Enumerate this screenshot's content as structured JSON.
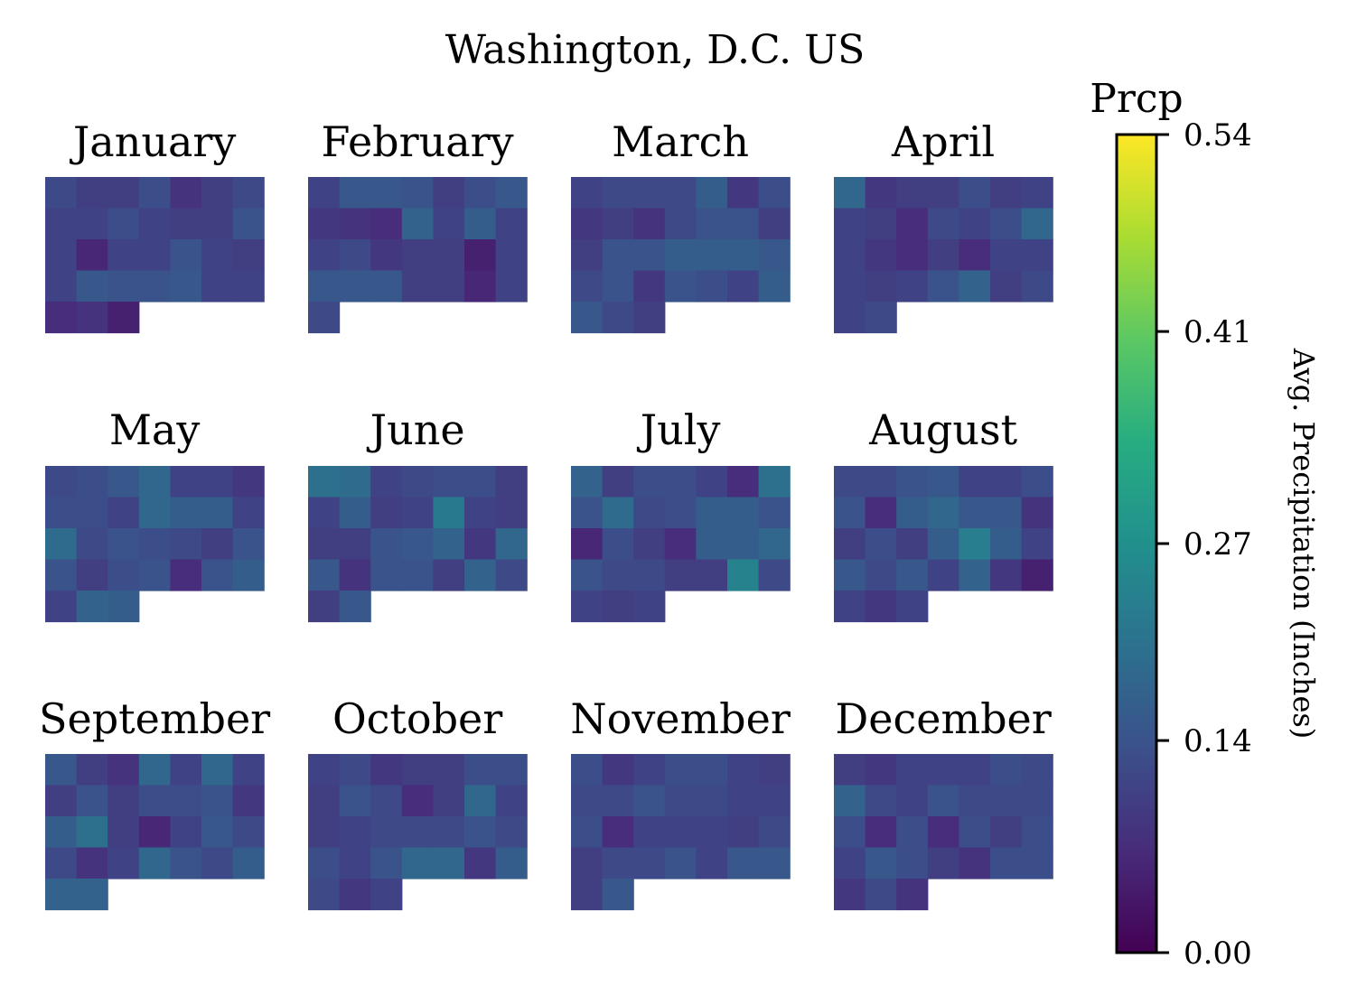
{
  "chart_data": {
    "type": "heatmap",
    "title": "Washington, D.C. US",
    "colorbar": {
      "title": "Prcp",
      "label": "Avg. Precipitation (Inches)",
      "ticks": [
        "0.54",
        "0.41",
        "0.27",
        "0.14",
        "0.00"
      ],
      "range": [
        0.0,
        0.54
      ],
      "colormap": "viridis"
    },
    "grid": {
      "rows": 3,
      "cols": 4,
      "weeks_per_month": 5,
      "days_per_week": 7
    },
    "months": [
      {
        "name": "January",
        "values": [
          [
            0.12,
            0.1,
            0.1,
            0.13,
            0.08,
            0.1,
            0.12
          ],
          [
            0.11,
            0.11,
            0.13,
            0.11,
            0.1,
            0.1,
            0.14
          ],
          [
            0.11,
            0.06,
            0.11,
            0.11,
            0.14,
            0.11,
            0.1
          ],
          [
            0.11,
            0.15,
            0.14,
            0.14,
            0.15,
            0.11,
            0.11
          ],
          [
            0.07,
            0.08,
            0.05
          ]
        ]
      },
      {
        "name": "February",
        "values": [
          [
            0.11,
            0.15,
            0.15,
            0.14,
            0.1,
            0.13,
            0.15
          ],
          [
            0.09,
            0.08,
            0.07,
            0.17,
            0.11,
            0.16,
            0.11
          ],
          [
            0.11,
            0.12,
            0.09,
            0.1,
            0.1,
            0.05,
            0.11
          ],
          [
            0.15,
            0.15,
            0.15,
            0.1,
            0.1,
            0.06,
            0.11
          ],
          [
            0.12
          ]
        ]
      },
      {
        "name": "March",
        "values": [
          [
            0.11,
            0.12,
            0.12,
            0.12,
            0.16,
            0.09,
            0.13
          ],
          [
            0.09,
            0.1,
            0.08,
            0.12,
            0.14,
            0.14,
            0.1
          ],
          [
            0.1,
            0.14,
            0.14,
            0.16,
            0.16,
            0.16,
            0.15
          ],
          [
            0.12,
            0.14,
            0.09,
            0.14,
            0.13,
            0.11,
            0.16
          ],
          [
            0.15,
            0.12,
            0.1
          ]
        ]
      },
      {
        "name": "April",
        "values": [
          [
            0.18,
            0.09,
            0.1,
            0.1,
            0.13,
            0.1,
            0.11
          ],
          [
            0.11,
            0.1,
            0.07,
            0.12,
            0.11,
            0.13,
            0.18
          ],
          [
            0.11,
            0.09,
            0.07,
            0.1,
            0.07,
            0.11,
            0.11
          ],
          [
            0.11,
            0.1,
            0.11,
            0.14,
            0.17,
            0.1,
            0.12
          ],
          [
            0.11,
            0.12
          ]
        ]
      },
      {
        "name": "May",
        "values": [
          [
            0.12,
            0.13,
            0.15,
            0.18,
            0.11,
            0.11,
            0.09
          ],
          [
            0.13,
            0.13,
            0.11,
            0.18,
            0.16,
            0.16,
            0.11
          ],
          [
            0.19,
            0.12,
            0.14,
            0.13,
            0.12,
            0.1,
            0.14
          ],
          [
            0.14,
            0.1,
            0.13,
            0.14,
            0.07,
            0.14,
            0.16
          ],
          [
            0.11,
            0.17,
            0.16
          ]
        ]
      },
      {
        "name": "June",
        "values": [
          [
            0.2,
            0.19,
            0.11,
            0.12,
            0.13,
            0.13,
            0.1
          ],
          [
            0.11,
            0.16,
            0.1,
            0.11,
            0.22,
            0.11,
            0.1
          ],
          [
            0.1,
            0.1,
            0.14,
            0.15,
            0.17,
            0.09,
            0.18
          ],
          [
            0.15,
            0.08,
            0.14,
            0.14,
            0.1,
            0.17,
            0.12
          ],
          [
            0.1,
            0.15
          ]
        ]
      },
      {
        "name": "July",
        "values": [
          [
            0.17,
            0.1,
            0.13,
            0.13,
            0.11,
            0.07,
            0.2
          ],
          [
            0.14,
            0.19,
            0.12,
            0.13,
            0.16,
            0.16,
            0.14
          ],
          [
            0.06,
            0.13,
            0.1,
            0.07,
            0.16,
            0.16,
            0.18
          ],
          [
            0.14,
            0.12,
            0.12,
            0.1,
            0.1,
            0.24,
            0.12
          ],
          [
            0.11,
            0.1,
            0.11
          ]
        ]
      },
      {
        "name": "August",
        "values": [
          [
            0.12,
            0.12,
            0.14,
            0.15,
            0.11,
            0.11,
            0.13
          ],
          [
            0.14,
            0.07,
            0.16,
            0.18,
            0.15,
            0.15,
            0.08
          ],
          [
            0.1,
            0.13,
            0.1,
            0.16,
            0.23,
            0.16,
            0.11
          ],
          [
            0.15,
            0.12,
            0.15,
            0.11,
            0.17,
            0.09,
            0.05
          ],
          [
            0.11,
            0.09,
            0.11
          ]
        ]
      },
      {
        "name": "September",
        "values": [
          [
            0.15,
            0.1,
            0.08,
            0.18,
            0.11,
            0.18,
            0.11
          ],
          [
            0.1,
            0.14,
            0.1,
            0.13,
            0.13,
            0.14,
            0.09
          ],
          [
            0.16,
            0.2,
            0.1,
            0.06,
            0.11,
            0.15,
            0.12
          ],
          [
            0.12,
            0.08,
            0.11,
            0.18,
            0.14,
            0.12,
            0.16
          ],
          [
            0.17,
            0.17
          ]
        ]
      },
      {
        "name": "October",
        "values": [
          [
            0.11,
            0.12,
            0.09,
            0.1,
            0.1,
            0.13,
            0.13
          ],
          [
            0.1,
            0.14,
            0.12,
            0.07,
            0.1,
            0.18,
            0.11
          ],
          [
            0.1,
            0.11,
            0.12,
            0.12,
            0.12,
            0.14,
            0.12
          ],
          [
            0.13,
            0.11,
            0.14,
            0.18,
            0.18,
            0.09,
            0.16
          ],
          [
            0.12,
            0.09,
            0.11
          ]
        ]
      },
      {
        "name": "November",
        "values": [
          [
            0.13,
            0.09,
            0.11,
            0.13,
            0.13,
            0.11,
            0.1
          ],
          [
            0.12,
            0.12,
            0.14,
            0.12,
            0.12,
            0.11,
            0.11
          ],
          [
            0.13,
            0.07,
            0.11,
            0.11,
            0.11,
            0.1,
            0.12
          ],
          [
            0.1,
            0.12,
            0.12,
            0.14,
            0.11,
            0.15,
            0.15
          ],
          [
            0.1,
            0.15
          ]
        ]
      },
      {
        "name": "December",
        "values": [
          [
            0.1,
            0.09,
            0.11,
            0.11,
            0.11,
            0.13,
            0.12
          ],
          [
            0.17,
            0.12,
            0.11,
            0.14,
            0.12,
            0.12,
            0.12
          ],
          [
            0.13,
            0.07,
            0.13,
            0.07,
            0.13,
            0.1,
            0.13
          ],
          [
            0.11,
            0.15,
            0.13,
            0.1,
            0.08,
            0.13,
            0.13
          ],
          [
            0.09,
            0.12,
            0.08
          ]
        ]
      }
    ]
  }
}
